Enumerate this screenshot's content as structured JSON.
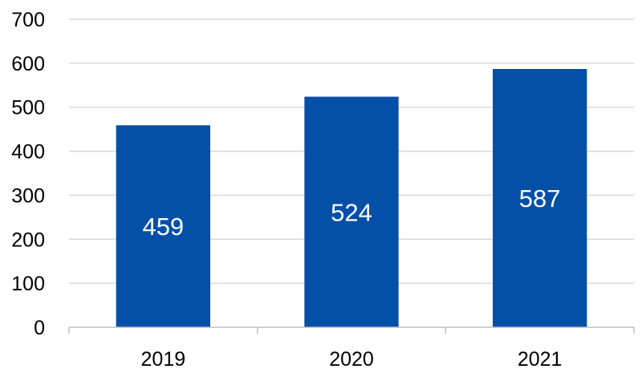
{
  "chart_data": {
    "type": "bar",
    "categories": [
      "2019",
      "2020",
      "2021"
    ],
    "values": [
      459,
      524,
      587
    ],
    "data_labels": [
      "459",
      "524",
      "587"
    ],
    "ylim": [
      0,
      700
    ],
    "y_ticks": [
      0,
      100,
      200,
      300,
      400,
      500,
      600,
      700
    ],
    "y_tick_labels": [
      "0",
      "100",
      "200",
      "300",
      "400",
      "500",
      "600",
      "700"
    ],
    "grid": true,
    "legend": "none",
    "colors": {
      "bar": "#0450A8",
      "grid": "#D9D9D9",
      "axis": "#BFBFBF",
      "data_label": "#FFFFFF"
    }
  }
}
